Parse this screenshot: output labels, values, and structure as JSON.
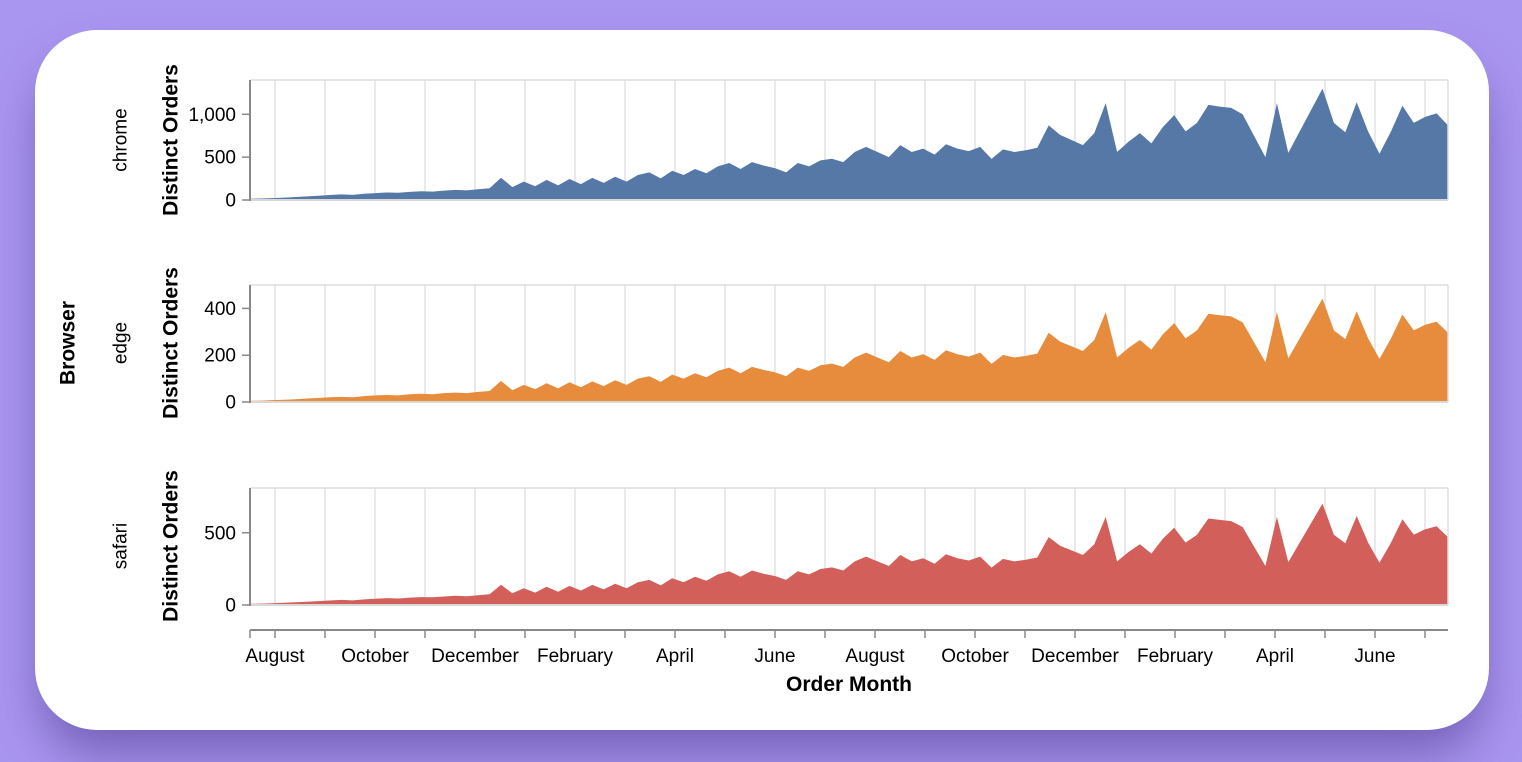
{
  "page": {
    "background_color": "#a996f0",
    "card_color": "#ffffff"
  },
  "chart_data": {
    "type": "area",
    "title": "",
    "facet_axis_title": "Browser",
    "x_axis_title": "Order Month",
    "y_axis_title": "Distinct Orders",
    "legend_position": "none",
    "grid": "vertical-monthly",
    "gridline_color": "#dddddd",
    "axis_line_color": "#888888",
    "x_tick_labels": [
      "August",
      "October",
      "December",
      "February",
      "April",
      "June",
      "August",
      "October",
      "December",
      "February",
      "April",
      "June"
    ],
    "facets": [
      {
        "label": "chrome",
        "color": "#5578a6",
        "y_tick_labels": [
          "0",
          "500",
          "1,000"
        ],
        "y_tick_values": [
          0,
          500,
          1000
        ],
        "y_domain_max": 1400,
        "values": [
          15,
          18,
          22,
          28,
          35,
          42,
          50,
          58,
          65,
          60,
          72,
          80,
          88,
          84,
          95,
          102,
          98,
          110,
          118,
          112,
          125,
          138,
          260,
          150,
          215,
          160,
          235,
          170,
          245,
          185,
          258,
          200,
          272,
          215,
          292,
          322,
          252,
          342,
          292,
          362,
          312,
          392,
          432,
          362,
          442,
          402,
          372,
          322,
          432,
          392,
          462,
          482,
          442,
          560,
          620,
          560,
          500,
          640,
          560,
          600,
          530,
          650,
          600,
          570,
          620,
          480,
          590,
          560,
          580,
          610,
          870,
          760,
          700,
          640,
          780,
          1130,
          560,
          680,
          780,
          660,
          850,
          990,
          800,
          900,
          1110,
          1090,
          1075,
          1000,
          750,
          500,
          1130,
          550,
          800,
          1050,
          1300,
          900,
          790,
          1140,
          800,
          540,
          800,
          1100,
          900,
          970,
          1010,
          870
        ]
      },
      {
        "label": "edge",
        "color": "#e78b3c",
        "y_tick_labels": [
          "0",
          "200",
          "400"
        ],
        "y_tick_values": [
          0,
          200,
          400
        ],
        "y_domain_max": 500,
        "values": [
          5,
          6,
          8,
          10,
          12,
          15,
          17,
          20,
          22,
          20,
          25,
          28,
          30,
          28,
          33,
          35,
          33,
          38,
          40,
          38,
          43,
          47,
          90,
          50,
          73,
          55,
          80,
          58,
          84,
          63,
          88,
          68,
          93,
          73,
          100,
          110,
          86,
          117,
          100,
          123,
          106,
          133,
          147,
          123,
          150,
          137,
          127,
          110,
          147,
          133,
          157,
          164,
          150,
          190,
          211,
          190,
          170,
          218,
          190,
          204,
          180,
          221,
          204,
          194,
          211,
          163,
          201,
          190,
          197,
          207,
          296,
          258,
          238,
          218,
          265,
          384,
          190,
          231,
          265,
          224,
          289,
          337,
          272,
          306,
          377,
          371,
          366,
          340,
          255,
          170,
          384,
          187,
          272,
          357,
          442,
          306,
          269,
          388,
          272,
          184,
          272,
          374,
          306,
          330,
          343,
          296
        ]
      },
      {
        "label": "safari",
        "color": "#d25f5a",
        "y_tick_labels": [
          "0",
          "500"
        ],
        "y_tick_values": [
          0,
          500
        ],
        "y_domain_max": 810,
        "values": [
          8,
          10,
          12,
          15,
          19,
          23,
          27,
          31,
          35,
          32,
          39,
          43,
          48,
          45,
          51,
          55,
          53,
          59,
          64,
          60,
          68,
          75,
          140,
          81,
          116,
          86,
          127,
          92,
          132,
          100,
          139,
          108,
          147,
          116,
          158,
          174,
          136,
          185,
          158,
          195,
          168,
          212,
          233,
          195,
          239,
          217,
          201,
          174,
          233,
          212,
          249,
          260,
          239,
          302,
          335,
          302,
          270,
          346,
          302,
          324,
          286,
          351,
          324,
          308,
          335,
          259,
          319,
          302,
          313,
          329,
          470,
          410,
          378,
          346,
          421,
          610,
          302,
          367,
          421,
          356,
          459,
          535,
          432,
          486,
          599,
          589,
          581,
          540,
          405,
          270,
          610,
          297,
          432,
          567,
          702,
          486,
          427,
          616,
          432,
          292,
          432,
          594,
          486,
          524,
          545,
          470
        ]
      }
    ]
  }
}
